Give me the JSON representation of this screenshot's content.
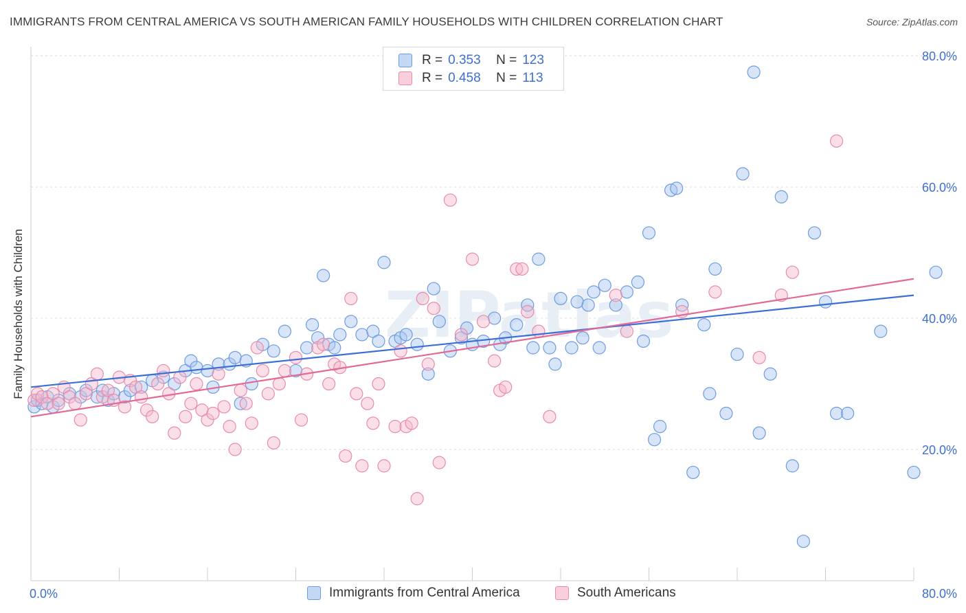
{
  "title": "IMMIGRANTS FROM CENTRAL AMERICA VS SOUTH AMERICAN FAMILY HOUSEHOLDS WITH CHILDREN CORRELATION CHART",
  "source": "Source: ZipAtlas.com",
  "watermark": "ZIPatlas",
  "legend": {
    "r_label": "R =",
    "n_label": "N =",
    "series": [
      {
        "name": "Immigrants from Central America",
        "r": "0.353",
        "n": "123"
      },
      {
        "name": "South Americans",
        "r": "0.458",
        "n": "113"
      }
    ]
  },
  "colors": {
    "blue_fill": "#a9c6f0",
    "blue_stroke": "#6d9be0",
    "blue_line": "#3c6fd6",
    "pink_fill": "#f5b9cd",
    "pink_stroke": "#e98aab",
    "pink_line": "#e06a95",
    "tick_color": "#3d6fd1"
  },
  "chart_data": {
    "type": "scatter",
    "title": "IMMIGRANTS FROM CENTRAL AMERICA VS SOUTH AMERICAN FAMILY HOUSEHOLDS WITH CHILDREN CORRELATION CHART",
    "xlabel": "",
    "ylabel": "Family Households with Children",
    "xlim": [
      0,
      80
    ],
    "ylim": [
      0,
      82
    ],
    "x_tick_labels": [
      "0.0%",
      "80.0%"
    ],
    "y_tick_labels": [
      "20.0%",
      "40.0%",
      "60.0%",
      "80.0%"
    ],
    "y_ticks": [
      20,
      40,
      60,
      80
    ],
    "series": [
      {
        "name": "Immigrants from Central America",
        "r": 0.353,
        "n": 123,
        "trend": {
          "x": [
            0,
            80
          ],
          "y": [
            29.5,
            43.5
          ]
        },
        "points": [
          [
            0.3,
            26.5
          ],
          [
            0.6,
            27.5
          ],
          [
            1,
            27
          ],
          [
            1.5,
            28
          ],
          [
            2,
            26.5
          ],
          [
            2.5,
            27.5
          ],
          [
            3.5,
            28.5
          ],
          [
            4.5,
            28
          ],
          [
            5,
            29
          ],
          [
            6,
            28
          ],
          [
            6.5,
            29
          ],
          [
            7,
            27.5
          ],
          [
            7.5,
            28.5
          ],
          [
            8.5,
            28
          ],
          [
            9,
            29
          ],
          [
            10,
            29.5
          ],
          [
            11,
            30.5
          ],
          [
            12,
            31
          ],
          [
            13,
            30
          ],
          [
            14,
            32
          ],
          [
            14.5,
            33.5
          ],
          [
            15,
            32.5
          ],
          [
            16,
            32
          ],
          [
            16.5,
            29.5
          ],
          [
            17,
            33
          ],
          [
            18,
            33
          ],
          [
            18.5,
            34
          ],
          [
            19,
            27
          ],
          [
            19.5,
            33.5
          ],
          [
            20,
            30
          ],
          [
            21,
            36
          ],
          [
            22,
            35
          ],
          [
            23,
            38
          ],
          [
            24,
            32
          ],
          [
            25,
            35.5
          ],
          [
            25.5,
            39
          ],
          [
            26,
            37
          ],
          [
            26.5,
            46.5
          ],
          [
            27,
            36
          ],
          [
            27.5,
            35.5
          ],
          [
            28,
            37.5
          ],
          [
            29,
            39.5
          ],
          [
            30,
            37.5
          ],
          [
            31,
            38
          ],
          [
            31.5,
            36.5
          ],
          [
            32,
            48.5
          ],
          [
            33,
            36.5
          ],
          [
            33.5,
            37
          ],
          [
            34,
            37.5
          ],
          [
            35,
            36
          ],
          [
            36,
            31.5
          ],
          [
            36.5,
            44.5
          ],
          [
            37,
            39.5
          ],
          [
            38,
            35
          ],
          [
            39,
            37
          ],
          [
            39.5,
            38.5
          ],
          [
            40,
            36
          ],
          [
            41,
            36.5
          ],
          [
            42,
            40
          ],
          [
            42.5,
            36
          ],
          [
            43,
            37
          ],
          [
            44,
            39
          ],
          [
            45,
            42
          ],
          [
            45.5,
            35.5
          ],
          [
            46,
            49
          ],
          [
            47,
            35.5
          ],
          [
            47.5,
            33
          ],
          [
            48,
            43
          ],
          [
            49,
            35.5
          ],
          [
            49.5,
            42.5
          ],
          [
            50,
            37
          ],
          [
            50.5,
            42
          ],
          [
            51,
            44
          ],
          [
            51.5,
            35.5
          ],
          [
            52,
            45
          ],
          [
            53,
            42
          ],
          [
            54,
            44
          ],
          [
            55,
            45.5
          ],
          [
            55.5,
            36.5
          ],
          [
            56,
            53
          ],
          [
            56.5,
            21.5
          ],
          [
            57,
            23.5
          ],
          [
            58,
            59.5
          ],
          [
            58.5,
            59.8
          ],
          [
            59,
            42
          ],
          [
            60,
            16.5
          ],
          [
            61,
            39
          ],
          [
            61.5,
            28.5
          ],
          [
            62,
            47.5
          ],
          [
            63,
            25.5
          ],
          [
            64,
            34.5
          ],
          [
            64.5,
            62
          ],
          [
            65.5,
            77.5
          ],
          [
            66,
            22.5
          ],
          [
            67,
            31.5
          ],
          [
            68,
            58.5
          ],
          [
            69,
            17.5
          ],
          [
            70,
            6
          ],
          [
            71,
            53
          ],
          [
            72,
            42.5
          ],
          [
            73,
            25.5
          ],
          [
            74,
            25.5
          ],
          [
            77,
            38
          ],
          [
            80,
            16.5
          ],
          [
            82,
            47
          ]
        ]
      },
      {
        "name": "South Americans",
        "r": 0.458,
        "n": 113,
        "trend": {
          "x": [
            0,
            80
          ],
          "y": [
            25.0,
            46.0
          ]
        },
        "points": [
          [
            0.3,
            27.5
          ],
          [
            0.6,
            28.5
          ],
          [
            1,
            28
          ],
          [
            1.5,
            27
          ],
          [
            2,
            28.5
          ],
          [
            2.5,
            27
          ],
          [
            3,
            29.5
          ],
          [
            3.5,
            28
          ],
          [
            4,
            27
          ],
          [
            4.5,
            24.5
          ],
          [
            5,
            28.5
          ],
          [
            5.5,
            30
          ],
          [
            6,
            31.5
          ],
          [
            6.5,
            28
          ],
          [
            7,
            29
          ],
          [
            7.5,
            27.5
          ],
          [
            8,
            31
          ],
          [
            8.5,
            26.5
          ],
          [
            9,
            30.5
          ],
          [
            9.5,
            29.5
          ],
          [
            10,
            28
          ],
          [
            10.5,
            26
          ],
          [
            11,
            25
          ],
          [
            11.5,
            30
          ],
          [
            12,
            32
          ],
          [
            12.5,
            28.5
          ],
          [
            13,
            22.5
          ],
          [
            13.5,
            31
          ],
          [
            14,
            25
          ],
          [
            14.5,
            27
          ],
          [
            15,
            30
          ],
          [
            15.5,
            26
          ],
          [
            16,
            24.5
          ],
          [
            16.5,
            25.5
          ],
          [
            17,
            31.5
          ],
          [
            17.5,
            26.5
          ],
          [
            18,
            23.5
          ],
          [
            18.5,
            20
          ],
          [
            19,
            29
          ],
          [
            19.5,
            27
          ],
          [
            20,
            24
          ],
          [
            20.5,
            35.5
          ],
          [
            21,
            32
          ],
          [
            21.5,
            28.5
          ],
          [
            22,
            21
          ],
          [
            22.5,
            30
          ],
          [
            23,
            32
          ],
          [
            24,
            34
          ],
          [
            24.5,
            24.5
          ],
          [
            25,
            31.5
          ],
          [
            26,
            35.5
          ],
          [
            26.5,
            36
          ],
          [
            27,
            30
          ],
          [
            27.5,
            33
          ],
          [
            28,
            32.5
          ],
          [
            28.5,
            19
          ],
          [
            29,
            43
          ],
          [
            29.5,
            28.5
          ],
          [
            30,
            17.5
          ],
          [
            30.5,
            27
          ],
          [
            31,
            24
          ],
          [
            31.5,
            30
          ],
          [
            32,
            17.5
          ],
          [
            33,
            23.5
          ],
          [
            33.5,
            35
          ],
          [
            34,
            23.5
          ],
          [
            34.5,
            24
          ],
          [
            35,
            12.5
          ],
          [
            35.5,
            43
          ],
          [
            36,
            33
          ],
          [
            36.5,
            41.5
          ],
          [
            37,
            18
          ],
          [
            38,
            58
          ],
          [
            39,
            37.5
          ],
          [
            40,
            49
          ],
          [
            41,
            39.5
          ],
          [
            42,
            33.5
          ],
          [
            42.5,
            29
          ],
          [
            43,
            29.5
          ],
          [
            44,
            47.5
          ],
          [
            44.5,
            47.5
          ],
          [
            45,
            41
          ],
          [
            46,
            38
          ],
          [
            47,
            25
          ],
          [
            53,
            43.5
          ],
          [
            54,
            38
          ],
          [
            59,
            41
          ],
          [
            62,
            44
          ],
          [
            66,
            34
          ],
          [
            68,
            43.5
          ],
          [
            69,
            47
          ],
          [
            73,
            67
          ]
        ]
      }
    ]
  }
}
